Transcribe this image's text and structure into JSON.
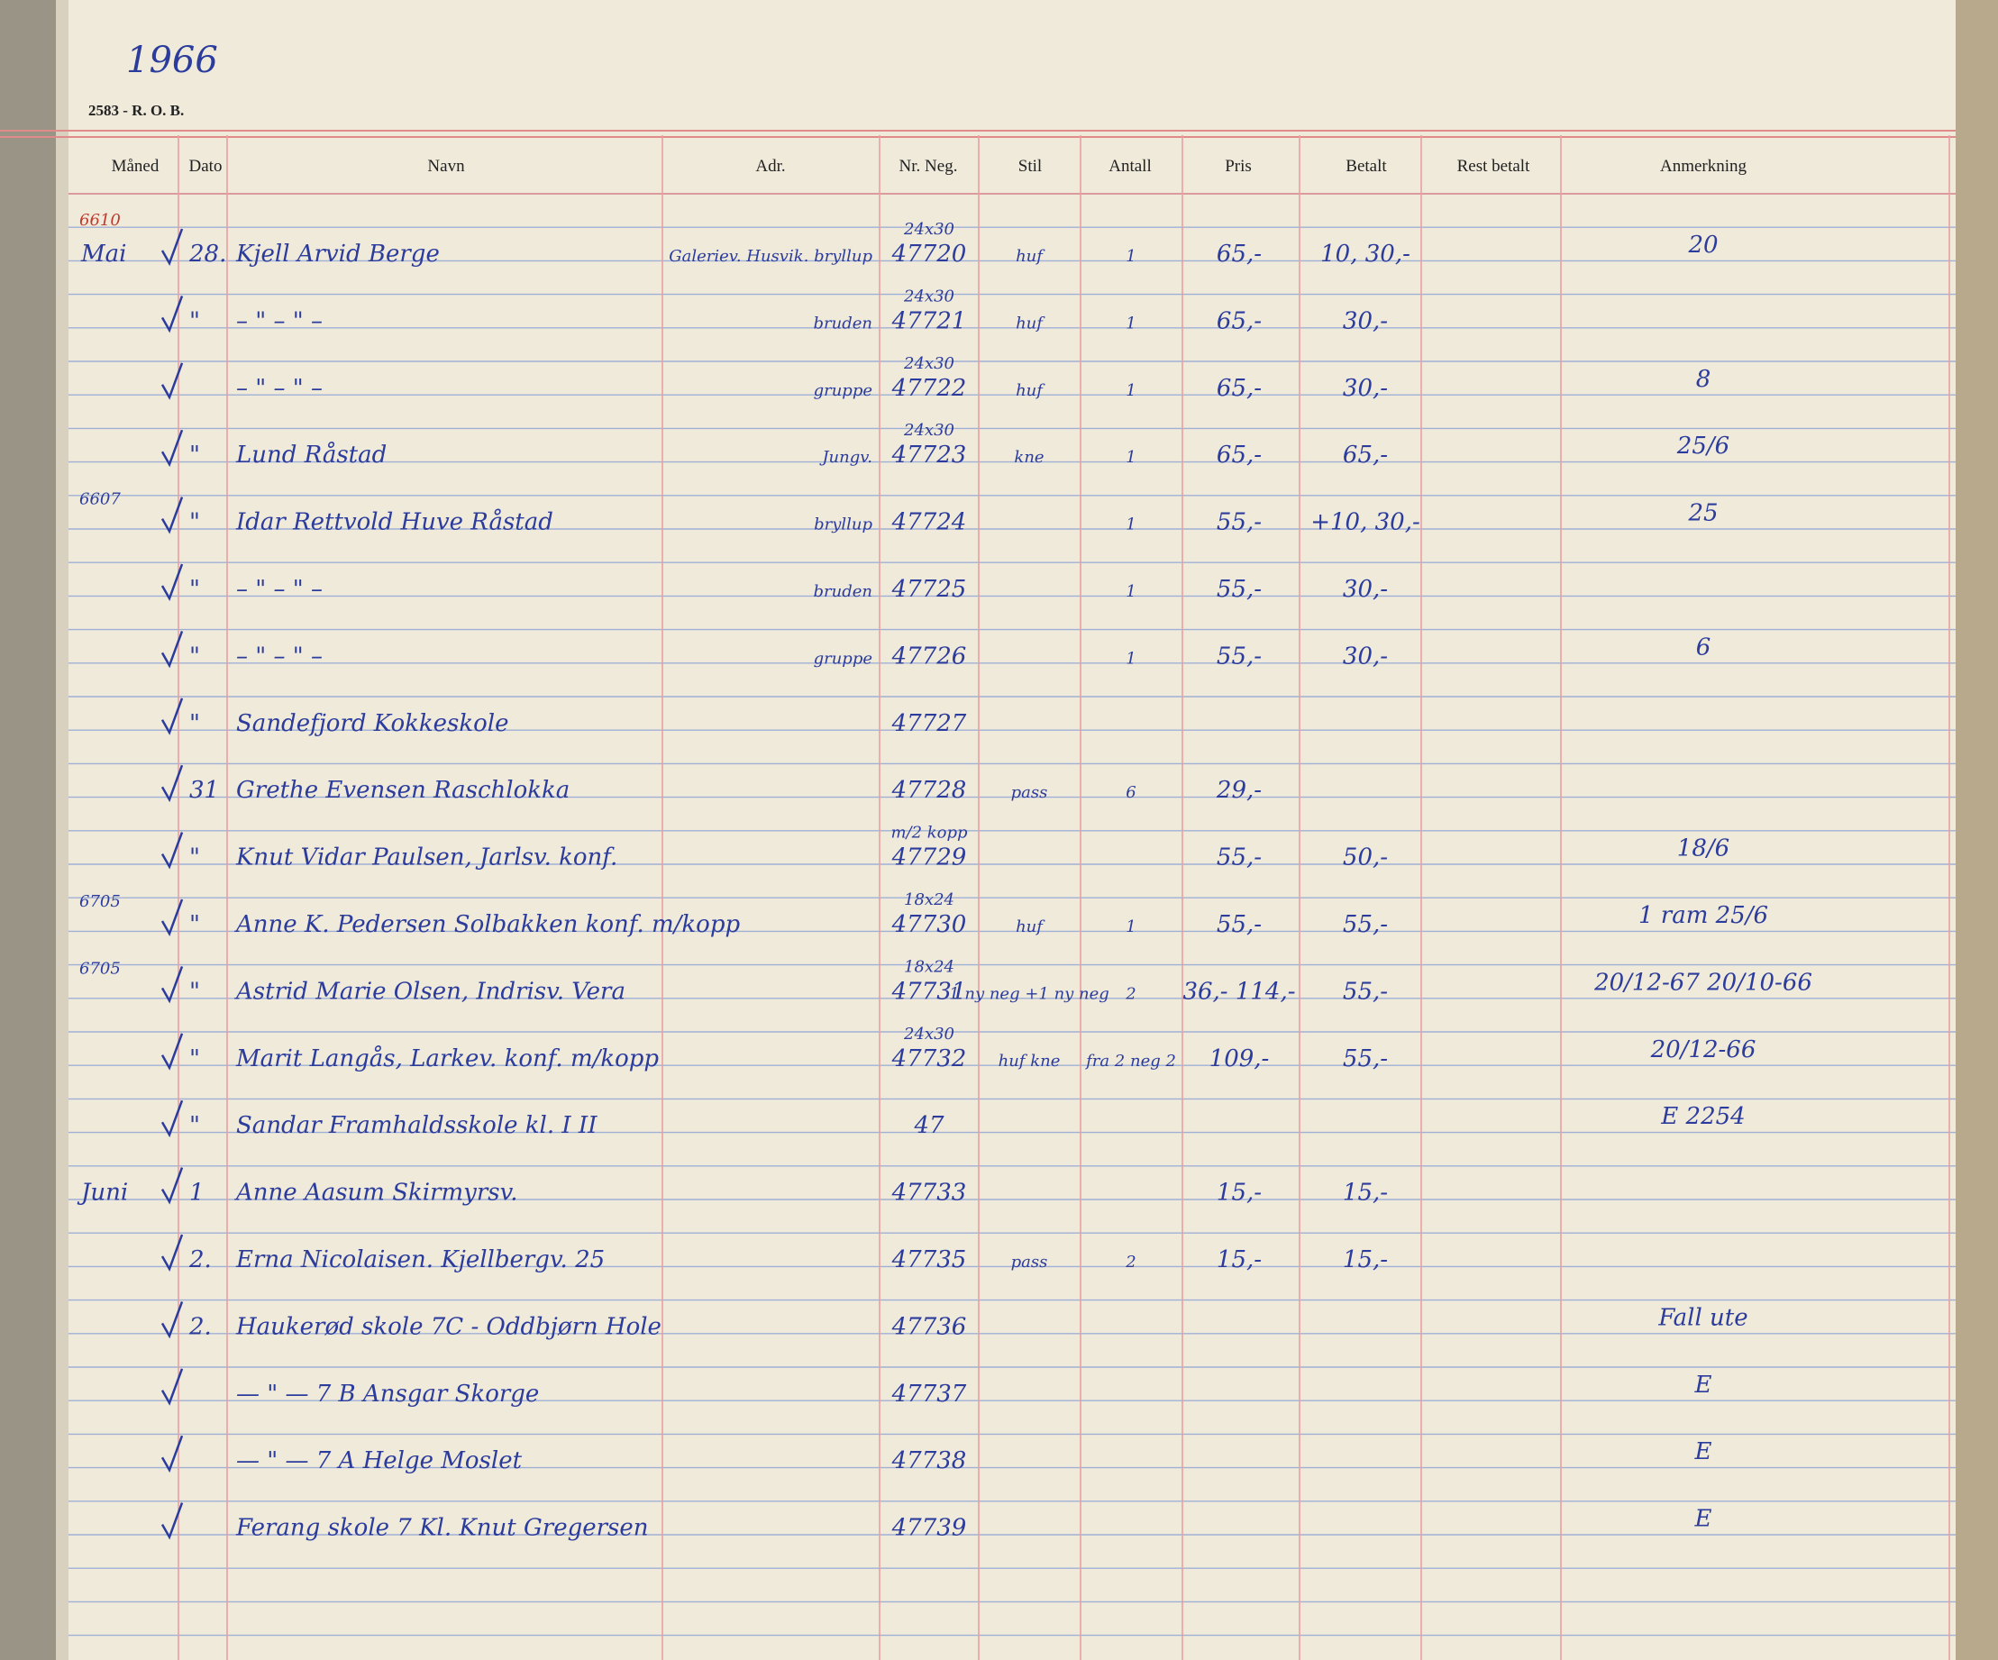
{
  "header": {
    "year": "1966",
    "form_code": "2583 - R. O. B.",
    "columns": [
      "Måned",
      "Dato",
      "Navn",
      "Adr.",
      "Nr. Neg.",
      "Stil",
      "Antall",
      "Pris",
      "Betalt",
      "Rest betalt",
      "Anmerkning"
    ]
  },
  "rows": [
    {
      "margin": "6610",
      "month": "Mai",
      "date": "28.",
      "name": "Kjell Arvid Berge",
      "address": "Galeriev. Husvik. bryllup",
      "size": "24x30",
      "neg": "47720",
      "style": "huf",
      "count": "1",
      "price": "65,-",
      "paid": "10, 30,-",
      "note": "20"
    },
    {
      "date": "\"",
      "name": "– \" – \" –",
      "address": "bruden",
      "size": "24x30",
      "neg": "47721",
      "style": "huf",
      "count": "1",
      "price": "65,-",
      "paid": "30,-"
    },
    {
      "name": "– \" – \" –",
      "address": "gruppe",
      "size": "24x30",
      "neg": "47722",
      "style": "huf",
      "count": "1",
      "price": "65,-",
      "paid": "30,-",
      "note": "8"
    },
    {
      "date": "\"",
      "name": "Lund Råstad",
      "address": "Jungv.",
      "size": "24x30",
      "neg": "47723",
      "style": "kne",
      "count": "1",
      "price": "65,-",
      "paid": "65,-",
      "note": "25/6"
    },
    {
      "margin": "6607",
      "date": "\"",
      "name": "Idar Rettvold Huve Råstad",
      "address": "bryllup",
      "neg": "47724",
      "count": "1",
      "price": "55,-",
      "paid": "+10, 30,-",
      "note": "25"
    },
    {
      "date": "\"",
      "name": "– \" – \" –",
      "address": "bruden",
      "neg": "47725",
      "count": "1",
      "price": "55,-",
      "paid": "30,-"
    },
    {
      "date": "\"",
      "name": "– \" – \" –",
      "address": "gruppe",
      "neg": "47726",
      "count": "1",
      "price": "55,-",
      "paid": "30,-",
      "note": "6"
    },
    {
      "date": "\"",
      "name": "Sandefjord Kokkeskole",
      "neg": "47727"
    },
    {
      "date": "31",
      "name": "Grethe Evensen Raschlokka",
      "neg": "47728",
      "style": "pass",
      "count": "6",
      "price": "29,-"
    },
    {
      "date": "\"",
      "name": "Knut Vidar Paulsen, Jarlsv. konf.",
      "size": "m/2 kopp",
      "neg": "47729",
      "price": "55,-",
      "paid": "50,-",
      "note": "18/6"
    },
    {
      "margin": "6705",
      "date": "\"",
      "name": "Anne K. Pedersen Solbakken konf. m/kopp",
      "size": "18x24",
      "neg": "47730",
      "style": "huf",
      "count": "1",
      "price": "55,-",
      "paid": "55,-",
      "note": "1 ram 25/6"
    },
    {
      "margin": "6705",
      "date": "\"",
      "name": "Astrid Marie Olsen, Indrisv. Vera",
      "size": "18x24",
      "neg": "47731",
      "style": "1 ny neg +1 ny neg",
      "count": "2",
      "price": "36,- 114,-",
      "paid": "55,-",
      "note": "20/12-67 20/10-66"
    },
    {
      "date": "\"",
      "name": "Marit Langås, Larkev. konf. m/kopp",
      "size": "24x30",
      "neg": "47732",
      "style": "huf kne",
      "count": "fra 2 neg 2",
      "price": "109,-",
      "paid": "55,-",
      "note": "20/12-66"
    },
    {
      "date": "\"",
      "name": "Sandar Framhaldsskole kl. I II",
      "neg": "47",
      "note": "E 2254"
    },
    {
      "month": "Juni",
      "date": "1",
      "name": "Anne Aasum Skirmyrsv.",
      "neg": "47733",
      "price": "15,-",
      "paid": "15,-"
    },
    {
      "date": "2.",
      "name": "Erna Nicolaisen. Kjellbergv. 25",
      "neg": "47735",
      "style": "pass",
      "count": "2",
      "price": "15,-",
      "paid": "15,-"
    },
    {
      "date": "2.",
      "name": "Haukerød skole 7C - Oddbjørn Hole",
      "neg": "47736",
      "note": "Fall ute"
    },
    {
      "name": "— \" — 7 B Ansgar Skorge",
      "neg": "47737",
      "note": "E"
    },
    {
      "name": "— \" — 7 A Helge Moslet",
      "neg": "47738",
      "note": "E"
    },
    {
      "name": "Ferang skole 7 Kl. Knut Gregersen",
      "neg": "47739",
      "note": "E"
    }
  ]
}
